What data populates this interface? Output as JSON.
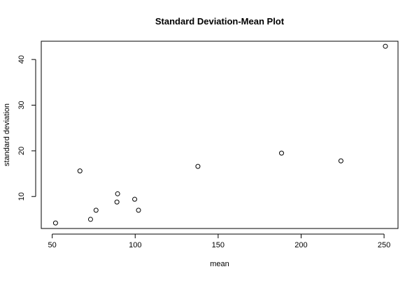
{
  "chart_data": {
    "type": "scatter",
    "title": "Standard Deviation-Mean Plot",
    "xlabel": "mean",
    "ylabel": "standard deviation",
    "xlim": [
      43.4,
      258.4
    ],
    "ylim": [
      3.0,
      44.0
    ],
    "xticks": [
      50,
      100,
      150,
      200,
      250
    ],
    "yticks": [
      10,
      20,
      30,
      40
    ],
    "grid": false,
    "points": [
      {
        "x": 52.0,
        "y": 4.2
      },
      {
        "x": 66.7,
        "y": 15.6
      },
      {
        "x": 73.1,
        "y": 5.0
      },
      {
        "x": 76.4,
        "y": 7.0
      },
      {
        "x": 89.0,
        "y": 8.8
      },
      {
        "x": 89.4,
        "y": 10.6
      },
      {
        "x": 99.7,
        "y": 9.4
      },
      {
        "x": 102.0,
        "y": 7.0
      },
      {
        "x": 137.8,
        "y": 16.6
      },
      {
        "x": 188.2,
        "y": 19.5
      },
      {
        "x": 224.0,
        "y": 17.8
      },
      {
        "x": 250.8,
        "y": 42.9
      }
    ],
    "colors": {
      "points": "#000000",
      "axes": "#000000",
      "background": "#ffffff"
    }
  }
}
